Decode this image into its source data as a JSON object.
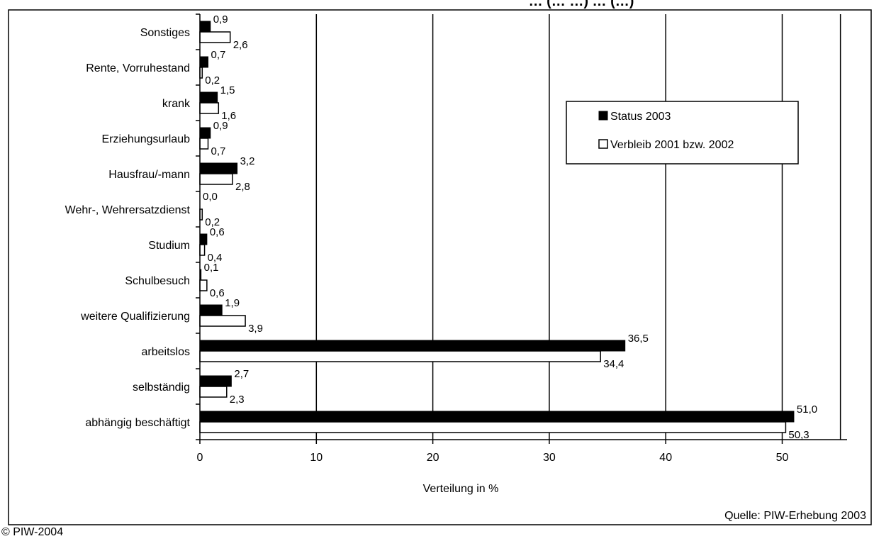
{
  "title": "… (… …) … (…)",
  "source": "Quelle: PIW-Erhebung 2003",
  "copyright": "© PIW-2004",
  "colors": {
    "status": "#000000",
    "verbleib": "#ffffff",
    "outline": "#000000"
  },
  "chart_data": {
    "type": "bar",
    "orientation": "horizontal",
    "categories": [
      "Sonstiges",
      "Rente, Vorruhestand",
      "krank",
      "Erziehungsurlaub",
      "Hausfrau/-mann",
      "Wehr-, Wehrersatzdienst",
      "Studium",
      "Schulbesuch",
      "weitere Qualifizierung",
      "arbeitslos",
      "selbständig",
      "abhängig beschäftigt"
    ],
    "series": [
      {
        "name": "Status 2003",
        "values": [
          0.9,
          0.7,
          1.5,
          0.9,
          3.2,
          0.0,
          0.6,
          0.1,
          1.9,
          36.5,
          2.7,
          51.0
        ],
        "labels": [
          "0,9",
          "0,7",
          "1,5",
          "0,9",
          "3,2",
          "0,0",
          "0,6",
          "0,1",
          "1,9",
          "36,5",
          "2,7",
          "51,0"
        ]
      },
      {
        "name": "Verbleib 2001 bzw. 2002",
        "values": [
          2.6,
          0.2,
          1.6,
          0.7,
          2.8,
          0.2,
          0.4,
          0.6,
          3.9,
          34.4,
          2.3,
          50.3
        ],
        "labels": [
          "2,6",
          "0,2",
          "1,6",
          "0,7",
          "2,8",
          "0,2",
          "0,4",
          "0,6",
          "3,9",
          "34,4",
          "2,3",
          "50,3"
        ]
      }
    ],
    "xlabel": "Verteilung in %",
    "xlim": [
      0,
      55
    ],
    "xticks": [
      0,
      10,
      20,
      30,
      40,
      50
    ],
    "grid": "vertical",
    "legend_position": "upper-right"
  }
}
